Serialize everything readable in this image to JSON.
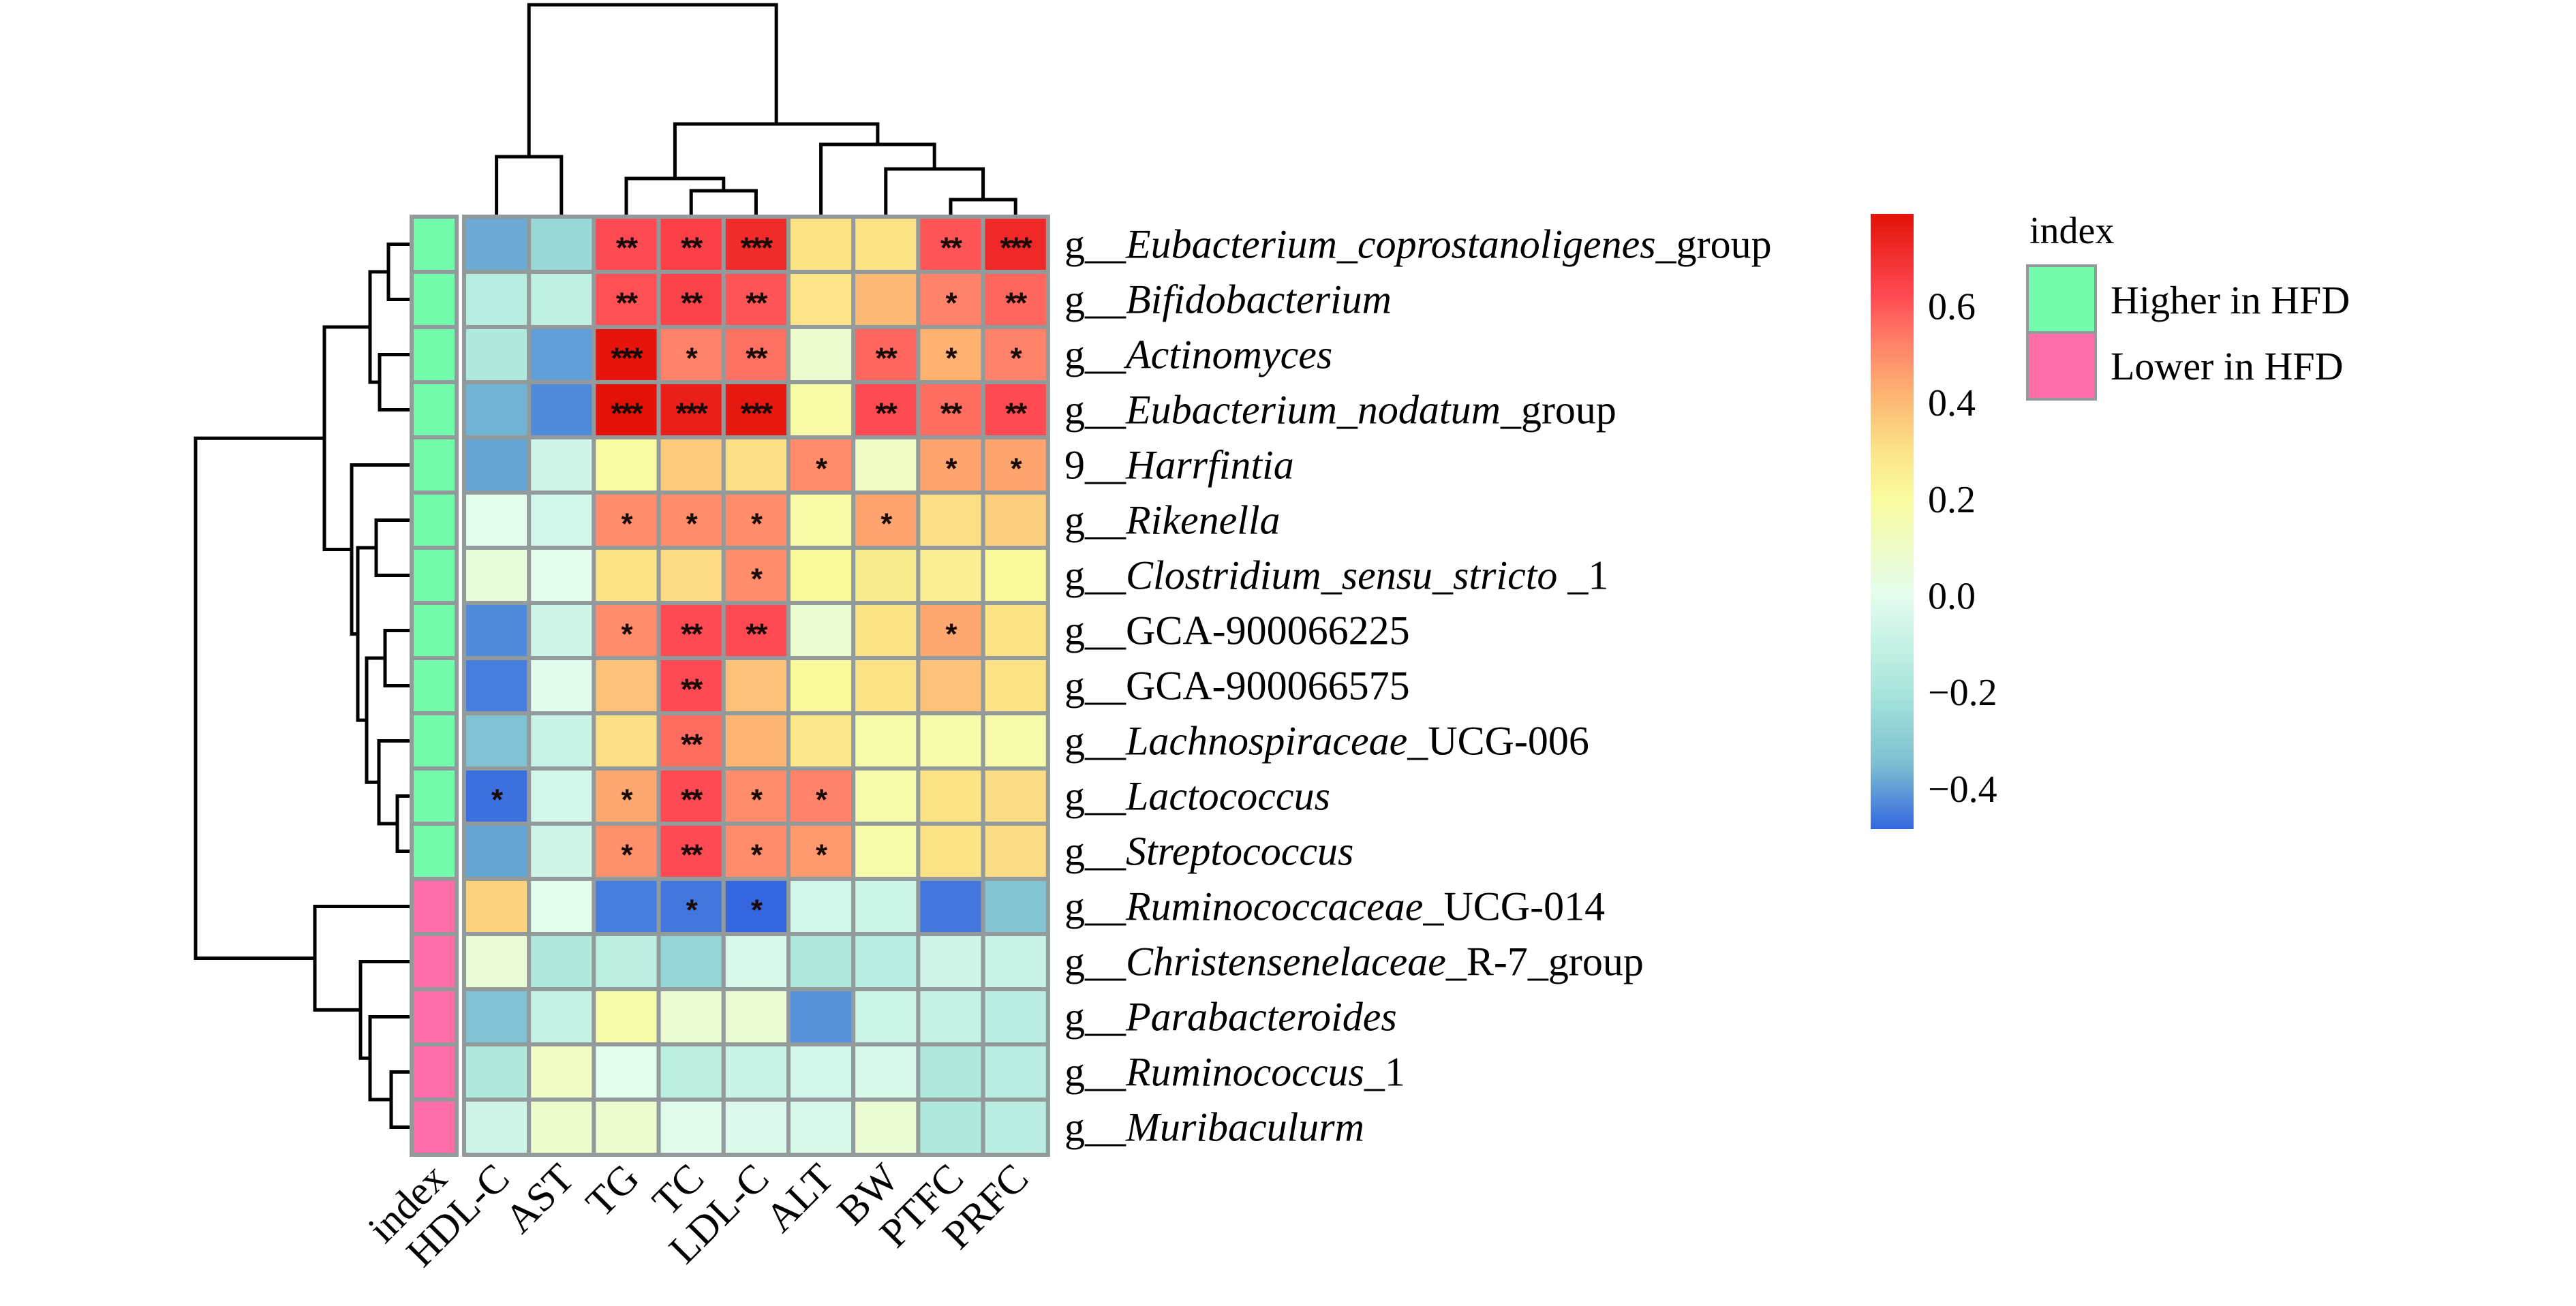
{
  "chart_data": {
    "type": "heatmap",
    "title": "",
    "columns": [
      "HDL-C",
      "AST",
      "TG",
      "TC",
      "LDL-C",
      "ALT",
      "BW",
      "PTFC",
      "PRFC"
    ],
    "rows": [
      {
        "prefix": "g__",
        "italic": "Eubacterium_coprostanoligenes",
        "suffix": "_group",
        "index": "Higher in HFD"
      },
      {
        "prefix": "g__",
        "italic": "Bifidobacterium",
        "suffix": "",
        "index": "Higher in HFD"
      },
      {
        "prefix": "g__",
        "italic": "Actinomyces",
        "suffix": "",
        "index": "Higher in HFD"
      },
      {
        "prefix": "g__",
        "italic": "Eubacterium_nodatum",
        "suffix": "_group",
        "index": "Higher in HFD"
      },
      {
        "prefix": "9__",
        "italic": "Harrfintia",
        "suffix": "",
        "index": "Higher in HFD"
      },
      {
        "prefix": "g__",
        "italic": "Rikenella",
        "suffix": "",
        "index": "Higher in HFD"
      },
      {
        "prefix": "g__",
        "italic": "Clostridium_sensu_stricto",
        "suffix": " _1",
        "index": "Higher in HFD"
      },
      {
        "prefix": "g__",
        "italic": "",
        "suffix": "GCA-900066225",
        "index": "Higher in HFD"
      },
      {
        "prefix": "g__",
        "italic": "",
        "suffix": "GCA-900066575",
        "index": "Higher in HFD"
      },
      {
        "prefix": "g__",
        "italic": "Lachnospiraceae",
        "suffix": "_UCG-006",
        "index": "Higher in HFD"
      },
      {
        "prefix": "g__",
        "italic": "Lactococcus",
        "suffix": "",
        "index": "Higher in HFD"
      },
      {
        "prefix": "g__",
        "italic": "Streptococcus",
        "suffix": "",
        "index": "Higher in HFD"
      },
      {
        "prefix": "g__",
        "italic": "Ruminococcaceae",
        "suffix": "_UCG-014",
        "index": "Lower in HFD"
      },
      {
        "prefix": "g__",
        "italic": "Christensenelaceae",
        "suffix": "_R-7_group",
        "index": "Lower in HFD"
      },
      {
        "prefix": "g__",
        "italic": "Parabacteroides",
        "suffix": "",
        "index": "Lower in HFD"
      },
      {
        "prefix": "g__",
        "italic": "Ruminococcus",
        "suffix": "_1",
        "index": "Lower in HFD"
      },
      {
        "prefix": "g__",
        "italic": "Muribaculurm",
        "suffix": "",
        "index": "Lower in HFD"
      }
    ],
    "values": [
      [
        -0.38,
        -0.25,
        0.62,
        0.65,
        0.71,
        0.3,
        0.3,
        0.6,
        0.72
      ],
      [
        -0.14,
        -0.12,
        0.61,
        0.64,
        0.6,
        0.29,
        0.4,
        0.52,
        0.57
      ],
      [
        -0.17,
        -0.4,
        0.78,
        0.52,
        0.55,
        0.08,
        0.57,
        0.42,
        0.52
      ],
      [
        -0.37,
        -0.43,
        0.79,
        0.75,
        0.77,
        0.18,
        0.62,
        0.56,
        0.62
      ],
      [
        -0.39,
        -0.07,
        0.19,
        0.36,
        0.31,
        0.5,
        0.1,
        0.45,
        0.45
      ],
      [
        0.0,
        -0.06,
        0.5,
        0.5,
        0.5,
        0.18,
        0.45,
        0.31,
        0.35
      ],
      [
        0.05,
        0.0,
        0.3,
        0.32,
        0.5,
        0.21,
        0.26,
        0.25,
        0.21
      ],
      [
        -0.43,
        -0.07,
        0.5,
        0.62,
        0.62,
        0.07,
        0.3,
        0.44,
        0.3
      ],
      [
        -0.45,
        -0.01,
        0.38,
        0.62,
        0.38,
        0.21,
        0.3,
        0.38,
        0.3
      ],
      [
        -0.34,
        -0.09,
        0.31,
        0.56,
        0.41,
        0.28,
        0.17,
        0.17,
        0.17
      ],
      [
        -0.47,
        -0.06,
        0.44,
        0.62,
        0.5,
        0.52,
        0.17,
        0.3,
        0.32
      ],
      [
        -0.39,
        -0.07,
        0.49,
        0.62,
        0.5,
        0.47,
        0.17,
        0.3,
        0.32
      ],
      [
        0.34,
        0.0,
        -0.45,
        -0.46,
        -0.485,
        -0.06,
        -0.08,
        -0.46,
        -0.33
      ],
      [
        0.06,
        -0.17,
        -0.13,
        -0.26,
        -0.04,
        -0.17,
        -0.15,
        -0.07,
        -0.09
      ],
      [
        -0.34,
        -0.1,
        0.17,
        0.07,
        0.07,
        -0.42,
        -0.08,
        -0.1,
        -0.14
      ],
      [
        -0.17,
        0.1,
        0.0,
        -0.13,
        -0.09,
        -0.06,
        -0.04,
        -0.17,
        -0.14
      ],
      [
        -0.07,
        0.09,
        0.08,
        -0.01,
        -0.03,
        -0.04,
        0.07,
        -0.17,
        -0.14
      ]
    ],
    "significance": [
      [
        "",
        "",
        "**",
        "**",
        "***",
        "",
        "",
        "**",
        "***"
      ],
      [
        "",
        "",
        "**",
        "**",
        "**",
        "",
        "",
        "*",
        "**"
      ],
      [
        "",
        "",
        "***",
        "*",
        "**",
        "",
        "**",
        "*",
        "*"
      ],
      [
        "",
        "",
        "***",
        "***",
        "***",
        "",
        "**",
        "**",
        "**"
      ],
      [
        "",
        "",
        "",
        "",
        "",
        "*",
        "",
        "*",
        "*"
      ],
      [
        "",
        "",
        "*",
        "*",
        "*",
        "",
        "*",
        "",
        ""
      ],
      [
        "",
        "",
        "",
        "",
        "*",
        "",
        "",
        "",
        ""
      ],
      [
        "",
        "",
        "*",
        "**",
        "**",
        "",
        "",
        "*",
        ""
      ],
      [
        "",
        "",
        "",
        "**",
        "",
        "",
        "",
        "",
        ""
      ],
      [
        "",
        "",
        "",
        "**",
        "",
        "",
        "",
        "",
        ""
      ],
      [
        "*",
        "",
        "*",
        "**",
        "*",
        "*",
        "",
        "",
        ""
      ],
      [
        "",
        "",
        "*",
        "**",
        "*",
        "*",
        "",
        "",
        ""
      ],
      [
        "",
        "",
        "",
        "*",
        "*",
        "",
        "",
        "",
        ""
      ],
      [
        "",
        "",
        "",
        "",
        "",
        "",
        "",
        "",
        ""
      ],
      [
        "",
        "",
        "",
        "",
        "",
        "",
        "",
        "",
        ""
      ],
      [
        "",
        "",
        "",
        "",
        "",
        "",
        "",
        "",
        ""
      ],
      [
        "",
        "",
        "",
        "",
        "",
        "",
        "",
        "",
        ""
      ]
    ],
    "index_label": "index",
    "index_colors": {
      "Higher in HFD": "#74fcad",
      "Lower in HFD": "#ff6ea8"
    },
    "colorbar": {
      "range": [
        -0.485,
        0.79
      ],
      "ticks": [
        0.6,
        0.4,
        0.2,
        0.0,
        -0.2,
        -0.4
      ],
      "tick_labels": [
        "0.6",
        "0.4",
        "0.2",
        "0.0",
        "−0.2",
        "−0.4"
      ],
      "stops": [
        [
          -0.485,
          "#3466e0"
        ],
        [
          -0.35,
          "#7dbfd1"
        ],
        [
          -0.2,
          "#a8e6dc"
        ],
        [
          0.0,
          "#e4fdee"
        ],
        [
          0.2,
          "#f9fb9e"
        ],
        [
          0.3,
          "#fbe386"
        ],
        [
          0.42,
          "#fdb272"
        ],
        [
          0.52,
          "#ff8269"
        ],
        [
          0.62,
          "#ff4a53"
        ],
        [
          0.79,
          "#e31208"
        ]
      ]
    },
    "legend": {
      "title": "index",
      "items": [
        {
          "label": "Higher in HFD",
          "color": "#74fcad"
        },
        {
          "label": "Lower in HFD",
          "color": "#ff6ea8"
        }
      ],
      "position": "right"
    },
    "row_dendrogram": "((((0,1),(2,3)),(4,((5,6),((7,8),(9,(10,11)))))),(12,(13,(14,(15,16)))))",
    "col_dendrogram": "((HDL-C,AST),((TG,(TC,LDL-C)),(ALT,(BW,(PTFC,PRFC)))))"
  }
}
